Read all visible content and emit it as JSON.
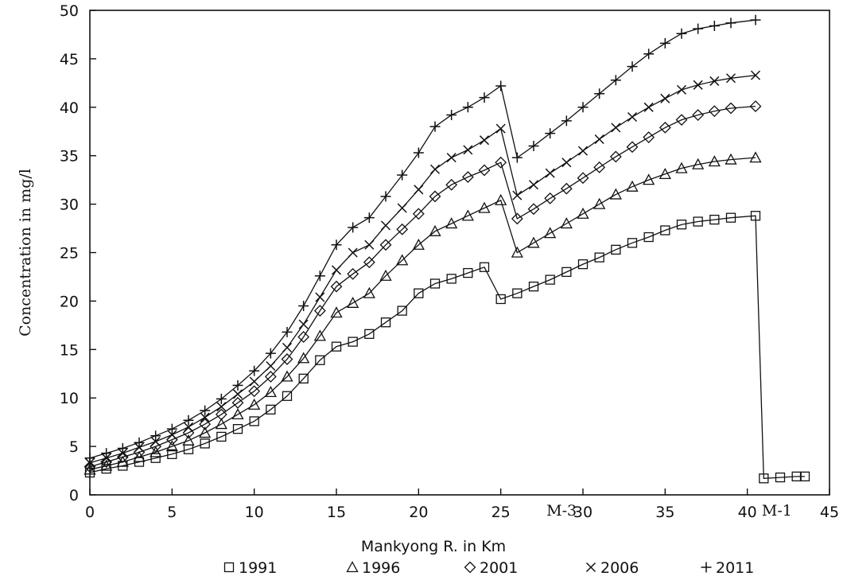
{
  "chart_data": {
    "type": "line",
    "ylabel": "Concentration in mg/l",
    "xlabel": "Mankyong R. in Km",
    "xlim": [
      0,
      45
    ],
    "ylim": [
      0,
      50
    ],
    "x_ticks": [
      "0",
      "5",
      "10",
      "15",
      "20",
      "25",
      "30",
      "35",
      "40",
      "45"
    ],
    "y_ticks": [
      "0",
      "5",
      "10",
      "15",
      "20",
      "25",
      "30",
      "35",
      "40",
      "45",
      "50"
    ],
    "grid": false,
    "legend_position": "bottom",
    "annotations": [
      {
        "text": "M-3",
        "x": 28.7
      },
      {
        "text": "M-1",
        "x": 41.8
      }
    ],
    "series": [
      {
        "name": "1991",
        "marker": "square",
        "x": [
          0,
          1,
          2,
          3,
          4,
          5,
          6,
          7,
          8,
          9,
          10,
          11,
          12,
          13,
          14,
          15,
          16,
          17,
          18,
          19,
          20,
          21,
          22,
          23,
          24,
          25,
          26,
          27,
          28,
          29,
          30,
          31,
          32,
          33,
          34,
          35,
          36,
          37,
          38,
          39,
          40.5,
          41,
          42,
          43,
          43.5
        ],
        "y": [
          2.3,
          2.7,
          3.0,
          3.4,
          3.8,
          4.2,
          4.7,
          5.3,
          6.0,
          6.8,
          7.6,
          8.8,
          10.2,
          12.0,
          13.9,
          15.3,
          15.8,
          16.6,
          17.8,
          19.0,
          20.8,
          21.8,
          22.3,
          22.9,
          23.5,
          20.2,
          20.8,
          21.5,
          22.2,
          23.0,
          23.8,
          24.5,
          25.3,
          26.0,
          26.6,
          27.3,
          27.9,
          28.2,
          28.4,
          28.6,
          28.8,
          1.7,
          1.8,
          1.9,
          1.9
        ]
      },
      {
        "name": "1996",
        "marker": "triangle",
        "x": [
          0,
          1,
          2,
          3,
          4,
          5,
          6,
          7,
          8,
          9,
          10,
          11,
          12,
          13,
          14,
          15,
          16,
          17,
          18,
          19,
          20,
          21,
          22,
          23,
          24,
          25,
          26,
          27,
          28,
          29,
          30,
          31,
          32,
          33,
          34,
          35,
          36,
          37,
          38,
          39,
          40.5
        ],
        "y": [
          2.6,
          3.0,
          3.4,
          3.9,
          4.4,
          5.0,
          5.6,
          6.4,
          7.3,
          8.3,
          9.3,
          10.6,
          12.2,
          14.1,
          16.4,
          18.8,
          19.8,
          20.8,
          22.6,
          24.2,
          25.8,
          27.2,
          28.0,
          28.8,
          29.6,
          30.4,
          25.0,
          26.0,
          27.0,
          28.0,
          29.0,
          30.0,
          31.0,
          31.8,
          32.5,
          33.1,
          33.7,
          34.1,
          34.4,
          34.6,
          34.8
        ]
      },
      {
        "name": "2001",
        "marker": "diamond",
        "x": [
          0,
          1,
          2,
          3,
          4,
          5,
          6,
          7,
          8,
          9,
          10,
          11,
          12,
          13,
          14,
          15,
          16,
          17,
          18,
          19,
          20,
          21,
          22,
          23,
          24,
          25,
          26,
          27,
          28,
          29,
          30,
          31,
          32,
          33,
          34,
          35,
          36,
          37,
          38,
          39,
          40.5
        ],
        "y": [
          2.9,
          3.4,
          3.9,
          4.4,
          5.0,
          5.7,
          6.4,
          7.3,
          8.3,
          9.5,
          10.7,
          12.2,
          14.0,
          16.3,
          19.0,
          21.5,
          22.8,
          24.0,
          25.8,
          27.4,
          29.0,
          30.8,
          32.0,
          32.8,
          33.5,
          34.3,
          28.5,
          29.5,
          30.6,
          31.6,
          32.7,
          33.8,
          34.9,
          35.9,
          36.9,
          37.9,
          38.7,
          39.2,
          39.6,
          39.9,
          40.1
        ]
      },
      {
        "name": "2006",
        "marker": "x",
        "x": [
          0,
          1,
          2,
          3,
          4,
          5,
          6,
          7,
          8,
          9,
          10,
          11,
          12,
          13,
          14,
          15,
          16,
          17,
          18,
          19,
          20,
          21,
          22,
          23,
          24,
          25,
          26,
          27,
          28,
          29,
          30,
          31,
          32,
          33,
          34,
          35,
          36,
          37,
          38,
          39,
          40.5
        ],
        "y": [
          3.3,
          3.8,
          4.3,
          4.9,
          5.5,
          6.2,
          7.0,
          8.0,
          9.1,
          10.4,
          11.7,
          13.3,
          15.2,
          17.6,
          20.4,
          23.2,
          25.0,
          25.8,
          27.8,
          29.6,
          31.5,
          33.6,
          34.8,
          35.6,
          36.6,
          37.8,
          30.9,
          32.0,
          33.2,
          34.3,
          35.5,
          36.7,
          37.9,
          39.0,
          40.0,
          40.9,
          41.8,
          42.3,
          42.7,
          43.0,
          43.3
        ]
      },
      {
        "name": "2011",
        "marker": "plus",
        "x": [
          0,
          1,
          2,
          3,
          4,
          5,
          6,
          7,
          8,
          9,
          10,
          11,
          12,
          13,
          14,
          15,
          16,
          17,
          18,
          19,
          20,
          21,
          22,
          23,
          24,
          25,
          26,
          27,
          28,
          29,
          30,
          31,
          32,
          33,
          34,
          35,
          36,
          37,
          38,
          39,
          40.5
        ],
        "y": [
          3.8,
          4.3,
          4.8,
          5.4,
          6.1,
          6.8,
          7.7,
          8.7,
          9.9,
          11.3,
          12.8,
          14.6,
          16.8,
          19.5,
          22.6,
          25.8,
          27.6,
          28.6,
          30.8,
          33.0,
          35.3,
          38.0,
          39.2,
          40.0,
          41.0,
          42.2,
          34.8,
          36.0,
          37.3,
          38.6,
          40.0,
          41.4,
          42.8,
          44.2,
          45.5,
          46.6,
          47.6,
          48.1,
          48.4,
          48.7,
          49.0
        ]
      }
    ]
  }
}
